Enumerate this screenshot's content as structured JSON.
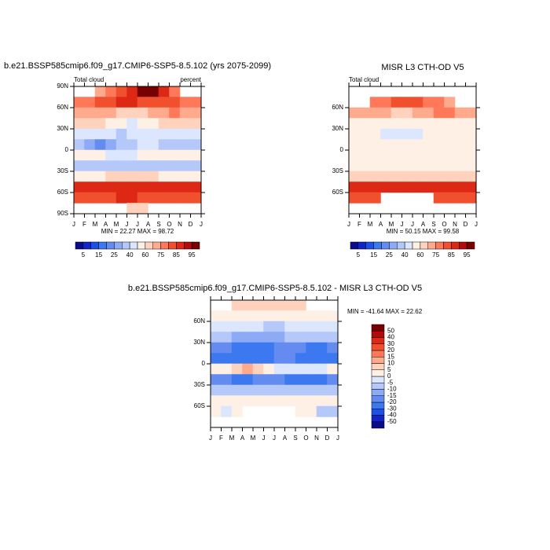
{
  "chart_data": [
    {
      "type": "heatmap",
      "title": "b.e21.BSSP585cmip6.f09_g17.CMIP6-SSP5-8.5.102 (yrs 2075-2099)",
      "left_label": "Total cloud",
      "right_label": "percent",
      "stats": "MIN =  22.27 MAX =  98.72",
      "xlim": [
        0,
        12
      ],
      "xticks": [
        {
          "value": 0,
          "label": "J"
        },
        {
          "value": 1,
          "label": "F"
        },
        {
          "value": 2,
          "label": "M"
        },
        {
          "value": 3,
          "label": "A"
        },
        {
          "value": 4,
          "label": "M"
        },
        {
          "value": 5,
          "label": "J"
        },
        {
          "value": 6,
          "label": "J"
        },
        {
          "value": 7,
          "label": "A"
        },
        {
          "value": 8,
          "label": "S"
        },
        {
          "value": 9,
          "label": "O"
        },
        {
          "value": 10,
          "label": "N"
        },
        {
          "value": 11,
          "label": "D"
        },
        {
          "value": 12,
          "label": "J"
        }
      ],
      "ylim": [
        -90,
        90
      ],
      "yticks": [
        {
          "value": 90,
          "label": "90N"
        },
        {
          "value": 60,
          "label": "60N"
        },
        {
          "value": 30,
          "label": "30N"
        },
        0,
        {
          "value": -30,
          "label": "30S"
        },
        {
          "value": -60,
          "label": "60S"
        },
        {
          "value": -90,
          "label": "90S"
        }
      ],
      "ybins": [
        90,
        75,
        60,
        45,
        30,
        15,
        0,
        -15,
        -30,
        -45,
        -60,
        -75,
        -90
      ],
      "values": [
        [
          null,
          null,
          70,
          75,
          80,
          85,
          95,
          95,
          85,
          75,
          null,
          null
        ],
        [
          75,
          78,
          80,
          82,
          85,
          85,
          80,
          80,
          82,
          80,
          75,
          75
        ],
        [
          70,
          72,
          72,
          70,
          68,
          65,
          65,
          70,
          72,
          75,
          72,
          70
        ],
        [
          60,
          62,
          60,
          55,
          50,
          48,
          50,
          55,
          60,
          62,
          62,
          60
        ],
        [
          45,
          45,
          42,
          40,
          38,
          40,
          45,
          48,
          45,
          42,
          42,
          45
        ],
        [
          35,
          25,
          22,
          25,
          30,
          35,
          40,
          40,
          38,
          35,
          35,
          35
        ],
        [
          55,
          55,
          50,
          45,
          45,
          48,
          50,
          52,
          55,
          55,
          52,
          55
        ],
        [
          35,
          35,
          35,
          38,
          38,
          35,
          35,
          35,
          35,
          35,
          35,
          35
        ],
        [
          55,
          55,
          58,
          60,
          62,
          62,
          62,
          60,
          58,
          55,
          55,
          55
        ],
        [
          85,
          85,
          88,
          88,
          85,
          85,
          85,
          85,
          85,
          85,
          85,
          85
        ],
        [
          80,
          80,
          82,
          82,
          85,
          85,
          82,
          82,
          80,
          80,
          80,
          80
        ],
        [
          null,
          null,
          null,
          null,
          null,
          65,
          65,
          null,
          null,
          null,
          null,
          null
        ]
      ],
      "colorbar": {
        "orientation": "horizontal",
        "levels": [
          5,
          10,
          15,
          20,
          25,
          30,
          40,
          50,
          60,
          70,
          75,
          80,
          85,
          90,
          95
        ],
        "colors": [
          "#0a0a8c",
          "#1024c8",
          "#1e50e6",
          "#3c78f0",
          "#648cf0",
          "#8caaf5",
          "#b4c8fa",
          "#dce6ff",
          "#fff0e6",
          "#ffd2be",
          "#ffaa8c",
          "#ff785a",
          "#f0502d",
          "#dc2814",
          "#b40a0a",
          "#780000"
        ]
      }
    },
    {
      "type": "heatmap",
      "title": "MISR L3 CTH-OD V5",
      "left_label": "Total cloud",
      "stats": "MIN =  50.15 MAX =  99.58",
      "xlim": [
        0,
        12
      ],
      "xticks": [
        {
          "value": 0,
          "label": "J"
        },
        {
          "value": 1,
          "label": "F"
        },
        {
          "value": 2,
          "label": "M"
        },
        {
          "value": 3,
          "label": "A"
        },
        {
          "value": 4,
          "label": "M"
        },
        {
          "value": 5,
          "label": "J"
        },
        {
          "value": 6,
          "label": "J"
        },
        {
          "value": 7,
          "label": "A"
        },
        {
          "value": 8,
          "label": "S"
        },
        {
          "value": 9,
          "label": "O"
        },
        {
          "value": 10,
          "label": "N"
        },
        {
          "value": 11,
          "label": "D"
        },
        {
          "value": 12,
          "label": "J"
        }
      ],
      "ylim": [
        -90,
        90
      ],
      "yticks": [
        {
          "value": 60,
          "label": "60N"
        },
        {
          "value": 30,
          "label": "30N"
        },
        0,
        {
          "value": -30,
          "label": "30S"
        },
        {
          "value": -60,
          "label": "60S"
        }
      ],
      "ybins": [
        90,
        75,
        60,
        45,
        30,
        15,
        0,
        -15,
        -30,
        -45,
        -60,
        -75,
        -90
      ],
      "values": [
        [
          null,
          null,
          null,
          null,
          null,
          null,
          null,
          null,
          null,
          null,
          null,
          null
        ],
        [
          null,
          null,
          75,
          78,
          80,
          80,
          80,
          78,
          75,
          70,
          null,
          null
        ],
        [
          70,
          72,
          72,
          70,
          68,
          68,
          70,
          72,
          75,
          75,
          72,
          70
        ],
        [
          58,
          58,
          55,
          52,
          50,
          50,
          52,
          55,
          58,
          58,
          58,
          58
        ],
        [
          50,
          50,
          50,
          48,
          45,
          45,
          48,
          50,
          52,
          52,
          50,
          50
        ],
        [
          52,
          52,
          55,
          55,
          55,
          55,
          55,
          55,
          52,
          52,
          52,
          52
        ],
        [
          55,
          55,
          55,
          55,
          55,
          55,
          55,
          55,
          55,
          55,
          55,
          55
        ],
        [
          52,
          52,
          55,
          55,
          55,
          55,
          52,
          52,
          52,
          52,
          52,
          52
        ],
        [
          62,
          62,
          62,
          65,
          65,
          65,
          65,
          65,
          62,
          62,
          62,
          62
        ],
        [
          85,
          85,
          85,
          85,
          85,
          85,
          85,
          85,
          85,
          85,
          85,
          85
        ],
        [
          80,
          82,
          82,
          null,
          null,
          null,
          null,
          null,
          80,
          80,
          80,
          80
        ],
        [
          null,
          null,
          null,
          null,
          null,
          null,
          null,
          null,
          null,
          null,
          null,
          null
        ]
      ],
      "colorbar": {
        "orientation": "horizontal",
        "levels": [
          5,
          10,
          15,
          20,
          25,
          30,
          40,
          50,
          60,
          70,
          75,
          80,
          85,
          90,
          95
        ],
        "colors": [
          "#0a0a8c",
          "#1024c8",
          "#1e50e6",
          "#3c78f0",
          "#648cf0",
          "#8caaf5",
          "#b4c8fa",
          "#dce6ff",
          "#fff0e6",
          "#ffd2be",
          "#ffaa8c",
          "#ff785a",
          "#f0502d",
          "#dc2814",
          "#b40a0a",
          "#780000"
        ]
      }
    },
    {
      "type": "heatmap",
      "title": "b.e21.BSSP585cmip6.f09_g17.CMIP6-SSP5-8.5.102 - MISR L3 CTH-OD V5",
      "stats": "MIN = -41.64 MAX =  22.62",
      "xlim": [
        0,
        12
      ],
      "xticks": [
        {
          "value": 0,
          "label": "J"
        },
        {
          "value": 1,
          "label": "F"
        },
        {
          "value": 2,
          "label": "M"
        },
        {
          "value": 3,
          "label": "A"
        },
        {
          "value": 4,
          "label": "M"
        },
        {
          "value": 5,
          "label": "J"
        },
        {
          "value": 6,
          "label": "J"
        },
        {
          "value": 7,
          "label": "A"
        },
        {
          "value": 8,
          "label": "S"
        },
        {
          "value": 9,
          "label": "O"
        },
        {
          "value": 10,
          "label": "N"
        },
        {
          "value": 11,
          "label": "D"
        },
        {
          "value": 12,
          "label": "J"
        }
      ],
      "ylim": [
        -90,
        90
      ],
      "yticks": [
        {
          "value": 60,
          "label": "60N"
        },
        {
          "value": 30,
          "label": "30N"
        },
        0,
        {
          "value": -30,
          "label": "30S"
        },
        {
          "value": -60,
          "label": "60S"
        }
      ],
      "ybins": [
        90,
        75,
        60,
        45,
        30,
        15,
        0,
        -15,
        -30,
        -45,
        -60,
        -75,
        -90
      ],
      "values": [
        [
          null,
          null,
          5,
          5,
          5,
          5,
          5,
          5,
          5,
          null,
          null,
          null
        ],
        [
          0,
          0,
          2,
          2,
          2,
          2,
          0,
          0,
          2,
          2,
          0,
          0
        ],
        [
          -2,
          -2,
          -5,
          -5,
          -5,
          -8,
          -8,
          -5,
          -2,
          -2,
          -2,
          -2
        ],
        [
          -8,
          -10,
          -12,
          -15,
          -15,
          -15,
          -12,
          -10,
          -8,
          -8,
          -8,
          -8
        ],
        [
          -20,
          -20,
          -22,
          -25,
          -25,
          -22,
          -20,
          -18,
          -20,
          -22,
          -22,
          -20
        ],
        [
          -25,
          -28,
          -30,
          -30,
          -28,
          -25,
          -20,
          -18,
          -22,
          -28,
          -30,
          -28
        ],
        [
          0,
          2,
          8,
          10,
          5,
          0,
          -2,
          -2,
          -2,
          -2,
          -2,
          0
        ],
        [
          -18,
          -20,
          -22,
          -22,
          -20,
          -20,
          -20,
          -22,
          -25,
          -25,
          -22,
          -20
        ],
        [
          -8,
          -8,
          -8,
          -8,
          -8,
          -8,
          -8,
          -10,
          -10,
          -8,
          -8,
          -8
        ],
        [
          0,
          0,
          2,
          2,
          0,
          0,
          0,
          0,
          0,
          0,
          0,
          0
        ],
        [
          2,
          -2,
          2,
          null,
          null,
          null,
          null,
          null,
          2,
          2,
          -8,
          -8
        ],
        [
          null,
          null,
          null,
          null,
          null,
          null,
          null,
          null,
          null,
          null,
          null,
          null
        ]
      ],
      "colorbar": {
        "orientation": "vertical",
        "levels": [
          -50,
          -40,
          -30,
          -20,
          -15,
          -10,
          -5,
          0,
          5,
          10,
          15,
          20,
          30,
          40,
          50
        ],
        "colors": [
          "#0a0a8c",
          "#1024c8",
          "#1e50e6",
          "#3c78f0",
          "#648cf0",
          "#8caaf5",
          "#b4c8fa",
          "#dce6ff",
          "#fff0e6",
          "#ffd2be",
          "#ffaa8c",
          "#ff785a",
          "#f0502d",
          "#dc2814",
          "#b40a0a",
          "#780000"
        ]
      }
    }
  ]
}
